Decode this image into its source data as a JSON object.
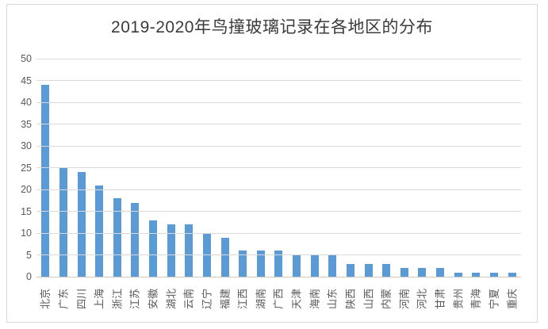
{
  "chart_data": {
    "type": "bar",
    "title": "2019-2020年鸟撞玻璃记录在各地区的分布",
    "categories": [
      "北京",
      "广东",
      "四川",
      "上海",
      "浙江",
      "江苏",
      "安徽",
      "湖北",
      "云南",
      "辽宁",
      "福建",
      "江西",
      "湖南",
      "广西",
      "天津",
      "海南",
      "山东",
      "陕西",
      "山西",
      "内蒙",
      "河南",
      "河北",
      "甘肃",
      "贵州",
      "青海",
      "宁夏",
      "重庆"
    ],
    "values": [
      44,
      25,
      24,
      21,
      18,
      17,
      13,
      12,
      12,
      10,
      9,
      6,
      6,
      6,
      5,
      5,
      5,
      3,
      3,
      3,
      2,
      2,
      2,
      1,
      1,
      1,
      1
    ],
    "xlabel": "",
    "ylabel": "",
    "ylim": [
      0,
      50
    ],
    "yticks": [
      0,
      5,
      10,
      15,
      20,
      25,
      30,
      35,
      40,
      45,
      50
    ],
    "grid": true,
    "legend": false,
    "colors": {
      "bar": "#5b9bd5",
      "gridline": "#d9d9d9",
      "axis_line": "#cfc8c0",
      "tick_text": "#595959",
      "title_text": "#3b3b3b",
      "frame_border": "#d9d9d9"
    }
  }
}
